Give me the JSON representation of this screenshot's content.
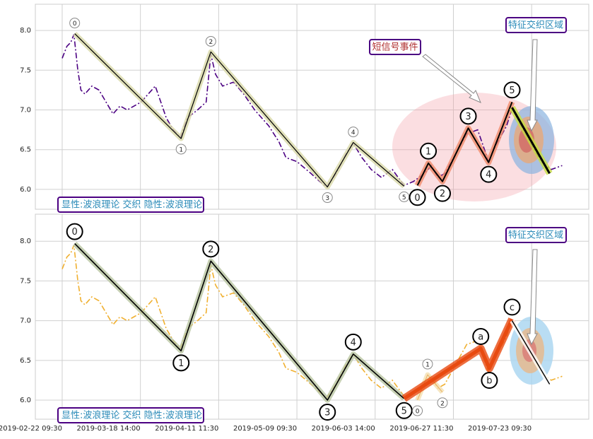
{
  "chart_data": [
    {
      "type": "line",
      "xlim": [
        -34.3,
        673
      ],
      "xticks": [
        0,
        100,
        200,
        300,
        400,
        500,
        600
      ],
      "ylim": [
        5.75,
        8.33
      ],
      "yticks": [
        {
          "value": 6,
          "label": "6.0"
        },
        6.5,
        {
          "value": 7,
          "label": "7.0"
        },
        7.5,
        {
          "value": 8,
          "label": "8.0"
        }
      ],
      "grid": true,
      "x": [
        0,
        6,
        11,
        15,
        20,
        24,
        29,
        38,
        47,
        56,
        65,
        74,
        83,
        92,
        101,
        110,
        119,
        126,
        133,
        142,
        151,
        160,
        173,
        184,
        190,
        196,
        205,
        219,
        232,
        246,
        264,
        277,
        286,
        300,
        318,
        329,
        338,
        350,
        363,
        372,
        383,
        395,
        408,
        422,
        437,
        449,
        463,
        472,
        480,
        489,
        503,
        517,
        531,
        545,
        554,
        568,
        575,
        584,
        598,
        612,
        625,
        639
      ],
      "series": [
        {
          "color": "#4b0082",
          "style": "dashdot",
          "values": [
            7.65,
            7.8,
            7.85,
            7.95,
            7.5,
            7.25,
            7.2,
            7.3,
            7.25,
            7.1,
            6.95,
            7.05,
            7.0,
            7.05,
            7.1,
            7.2,
            7.3,
            7.1,
            6.9,
            6.75,
            6.65,
            6.9,
            7.0,
            7.1,
            7.7,
            7.45,
            7.3,
            7.35,
            7.2,
            7.0,
            6.8,
            6.6,
            6.4,
            6.35,
            6.2,
            6.1,
            6.03,
            6.2,
            6.45,
            6.58,
            6.4,
            6.25,
            6.15,
            6.25,
            6.05,
            6.1,
            6.2,
            6.3,
            6.15,
            6.2,
            6.45,
            6.7,
            6.75,
            6.35,
            6.55,
            6.8,
            7.02,
            6.85,
            6.6,
            6.35,
            6.25,
            6.3
          ]
        }
      ],
      "waves": [
        {
          "x": [
            16,
            152,
            190,
            339,
            372,
            437
          ],
          "values": [
            7.96,
            6.64,
            7.73,
            6.03,
            6.59,
            6.04
          ],
          "labels": [
            "0",
            "1",
            "2",
            "3",
            "4",
            "5"
          ],
          "color": "#000000",
          "halo": "#d8d8a8",
          "width": 1.2,
          "label_style": "small"
        },
        {
          "x": [
            454,
            468,
            486,
            519,
            545,
            575
          ],
          "values": [
            6.05,
            6.33,
            6.1,
            6.77,
            6.34,
            7.1
          ],
          "labels": [
            "0",
            "1",
            "2",
            "3",
            "4",
            "5"
          ],
          "color": "#000000",
          "halo": "#f08a6a",
          "width": 2,
          "label_style": "big"
        },
        {
          "x": [
            575,
            623
          ],
          "values": [
            7.03,
            6.2
          ],
          "color": "#000000",
          "halo": "#c8e040",
          "width": 3
        }
      ],
      "annotations": [
        "短信号事件",
        "特征交织区域"
      ],
      "caption": "显性:波浪理论 交织 隐性:波浪理论"
    },
    {
      "type": "line",
      "xlim": [
        -34.3,
        673
      ],
      "xticks": [
        {
          "value": 0,
          "label": "2019-02-22 09:30"
        },
        {
          "value": 100,
          "label": "2019-03-18 14:00"
        },
        {
          "value": 200,
          "label": "2019-04-11 11:30"
        },
        {
          "value": 300,
          "label": "2019-05-09 09:30"
        },
        {
          "value": 400,
          "label": "2019-06-03 14:00"
        },
        {
          "value": 500,
          "label": "2019-06-27 11:30"
        },
        {
          "value": 600,
          "label": "2019-07-23 09:30"
        }
      ],
      "ylim": [
        5.76,
        8.34
      ],
      "yticks": [
        {
          "value": 6,
          "label": "6.0"
        },
        6.5,
        {
          "value": 7,
          "label": "7.0"
        },
        7.5,
        {
          "value": 8,
          "label": "8.0"
        }
      ],
      "grid": true,
      "x": [
        0,
        6,
        11,
        15,
        20,
        24,
        29,
        38,
        47,
        56,
        65,
        74,
        83,
        92,
        101,
        110,
        119,
        126,
        133,
        142,
        151,
        160,
        173,
        184,
        190,
        196,
        205,
        219,
        232,
        246,
        264,
        277,
        286,
        300,
        318,
        329,
        338,
        350,
        363,
        372,
        383,
        395,
        408,
        422,
        437,
        449,
        463,
        472,
        480,
        489,
        503,
        517,
        531,
        545,
        554,
        568,
        575,
        584,
        598,
        612,
        625,
        639
      ],
      "series": [
        {
          "color": "#f0b030",
          "style": "dashdot",
          "values": [
            7.65,
            7.8,
            7.85,
            7.95,
            7.5,
            7.25,
            7.2,
            7.3,
            7.25,
            7.1,
            6.95,
            7.05,
            7.0,
            7.05,
            7.1,
            7.2,
            7.3,
            7.1,
            6.9,
            6.75,
            6.65,
            6.9,
            7.0,
            7.1,
            7.7,
            7.45,
            7.3,
            7.35,
            7.2,
            7.0,
            6.8,
            6.6,
            6.4,
            6.35,
            6.2,
            6.1,
            6.03,
            6.2,
            6.45,
            6.58,
            6.4,
            6.25,
            6.15,
            6.25,
            6.05,
            6.1,
            6.2,
            6.3,
            6.15,
            6.2,
            6.45,
            6.7,
            6.75,
            6.35,
            6.55,
            6.8,
            7.02,
            6.85,
            6.6,
            6.35,
            6.25,
            6.3
          ]
        }
      ],
      "waves": [
        {
          "x": [
            16,
            152,
            190,
            339,
            372,
            437
          ],
          "values": [
            7.97,
            6.62,
            7.75,
            6.0,
            6.58,
            6.02
          ],
          "labels": [
            "0",
            "1",
            "2",
            "3",
            "4",
            "5"
          ],
          "color": "#000000",
          "halo": "#b8c4a0",
          "width": 1.6,
          "label_style": "big"
        },
        {
          "x": [
            454,
            467,
            486
          ],
          "values": [
            6.0,
            6.32,
            6.1
          ],
          "labels": [
            "0",
            "1",
            "2"
          ],
          "color": "#e8b060",
          "halo": "#f4e0b0",
          "width": 1,
          "label_style": "small"
        },
        {
          "x": [
            437,
            535,
            546,
            575
          ],
          "values": [
            6.02,
            6.65,
            6.4,
            7.02
          ],
          "labels": [
            null,
            "a",
            "b",
            "c"
          ],
          "color": "#e84a10",
          "halo": "#e84a10",
          "width": 5,
          "label_style": "big"
        },
        {
          "x": [
            575,
            623
          ],
          "values": [
            7.0,
            6.2
          ],
          "color": "#000000",
          "halo": "#ffffff",
          "width": 1.4
        }
      ],
      "annotations": [
        "特征交织区域"
      ],
      "caption": "显性:波浪理论 交织 隐性:波浪理论"
    }
  ]
}
